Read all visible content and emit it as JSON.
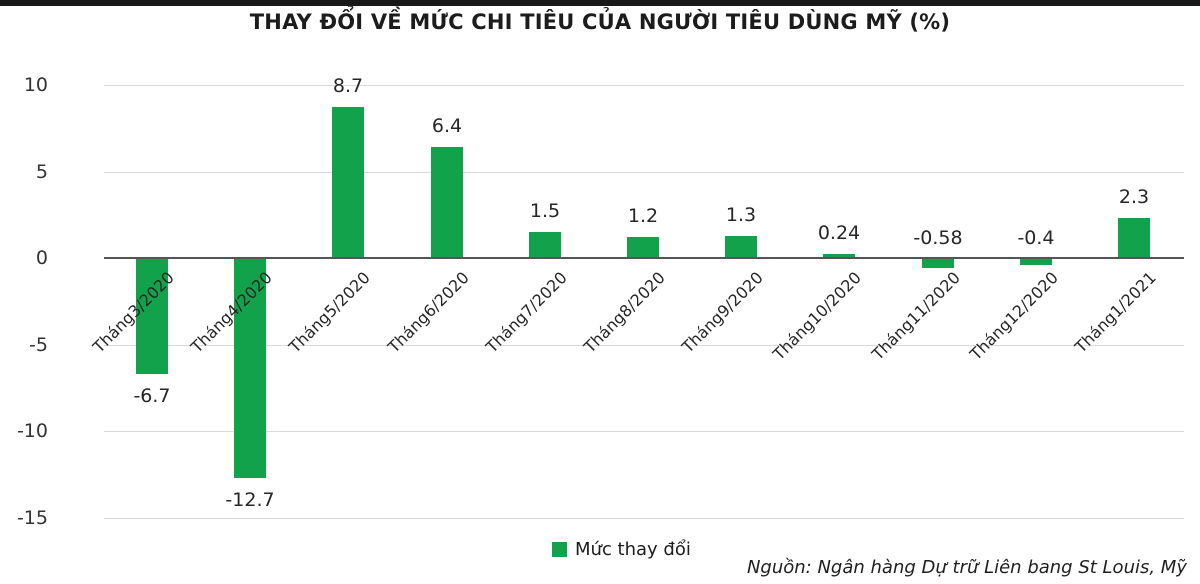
{
  "header": {
    "title": "THAY ĐỔI VỀ MỨC CHI TIÊU CỦA NGƯỜI TIÊU DÙNG MỸ (%)"
  },
  "legend": {
    "swatch_icon": "green-square-icon",
    "label": "Mức thay đổi"
  },
  "source": {
    "text": "Nguồn: Ngân hàng Dự trữ Liên bang St Louis, Mỹ"
  },
  "colors": {
    "bar": "#12a24b",
    "gridline": "#d9d9d9",
    "axis_line": "#555555",
    "top_accent_bar": "#191919",
    "text": "#262626"
  },
  "chart_data": {
    "type": "bar",
    "title": "THAY ĐỔI VỀ MỨC CHI TIÊU CỦA NGƯỜI TIÊU DÙNG MỸ (%)",
    "categories": [
      "Tháng3/2020",
      "Tháng4/2020",
      "Tháng5/2020",
      "Tháng6/2020",
      "Tháng7/2020",
      "Tháng8/2020",
      "Tháng9/2020",
      "Tháng10/2020",
      "Tháng11/2020",
      "Tháng12/2020",
      "Tháng1/2021"
    ],
    "values": [
      -6.7,
      -12.7,
      8.7,
      6.4,
      1.5,
      1.2,
      1.3,
      0.24,
      -0.58,
      -0.4,
      2.3
    ],
    "data_labels": [
      "-6.7",
      "-12.7",
      "8.7",
      "6.4",
      "1.5",
      "1.2",
      "1.3",
      "0.24",
      "-0.58",
      "-0.4",
      "2.3"
    ],
    "series": [
      {
        "name": "Mức thay đổi",
        "values": [
          -6.7,
          -12.7,
          8.7,
          6.4,
          1.5,
          1.2,
          1.3,
          0.24,
          -0.58,
          -0.4,
          2.3
        ]
      }
    ],
    "xlabel": "",
    "ylabel": "",
    "ylim": [
      -15,
      10
    ],
    "yticks": [
      10,
      5,
      0,
      -5,
      -10,
      -15
    ],
    "grid": true,
    "legend_position": "bottom",
    "legend": [
      "Mức thay đổi"
    ],
    "source": "Nguồn: Ngân hàng Dự trữ Liên bang St Louis, Mỹ"
  }
}
